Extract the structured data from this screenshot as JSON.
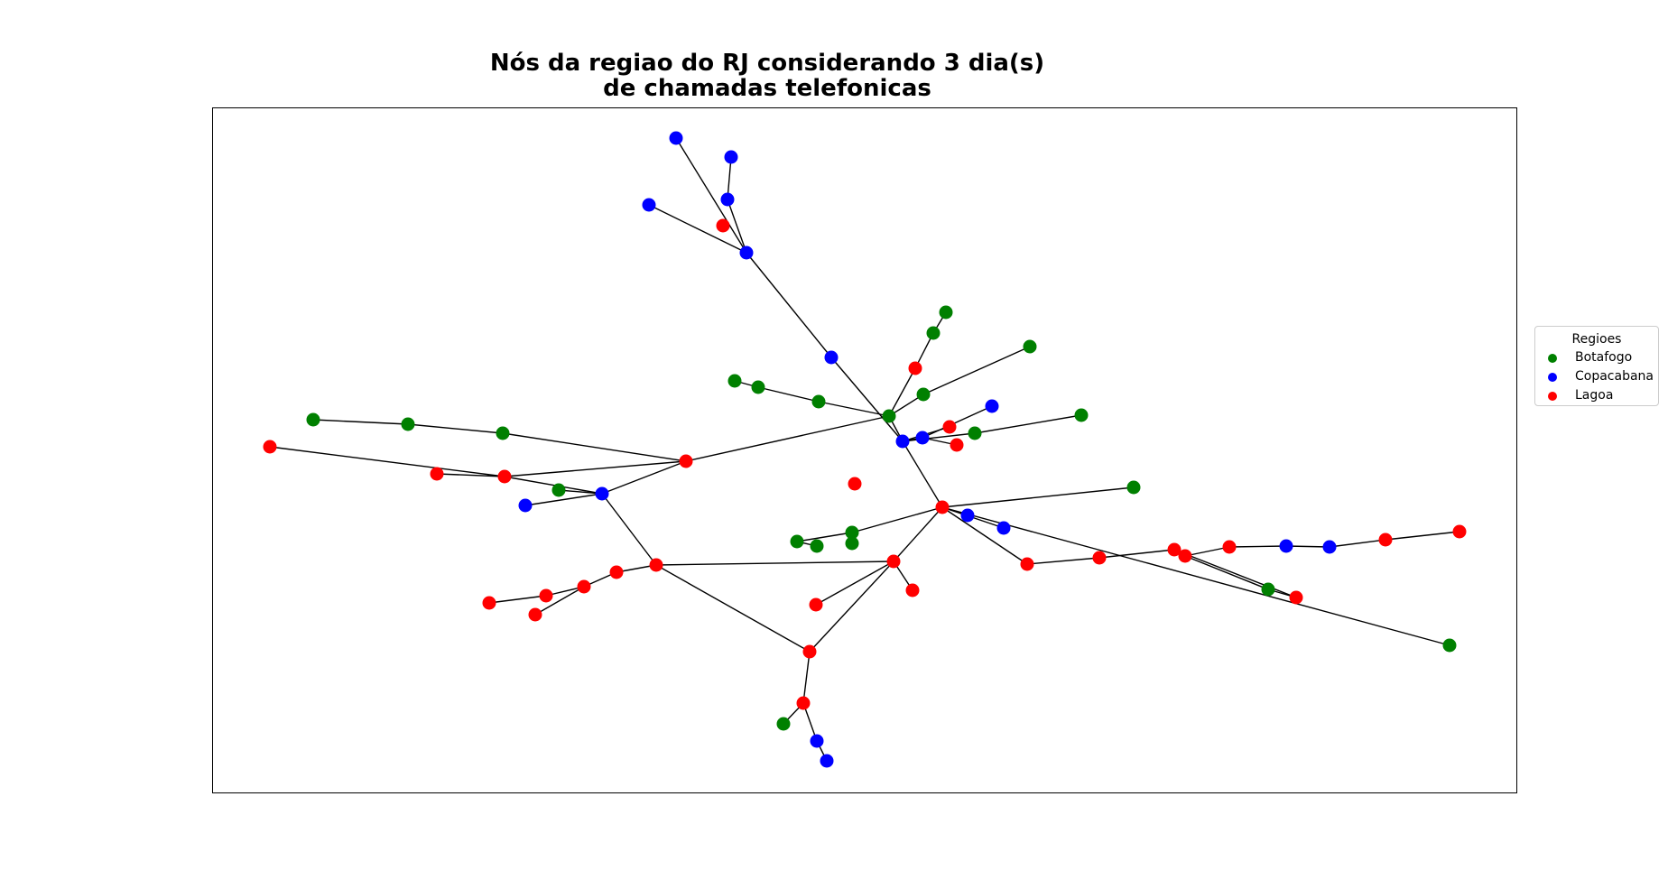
{
  "title": {
    "line1": "Nós da regiao do RJ considerando 3 dia(s)",
    "line2": "de chamadas telefonicas"
  },
  "legend": {
    "title": "Regioes",
    "items": [
      {
        "label": "Botafogo",
        "color": "#008000"
      },
      {
        "label": "Copacabana",
        "color": "#0000ff"
      },
      {
        "label": "Lagoa",
        "color": "#ff0000"
      }
    ]
  },
  "graph": {
    "edge_color": "#000000",
    "nodes": [
      {
        "id": "c1",
        "region": "Copacabana",
        "pos": [
          749,
          153
        ]
      },
      {
        "id": "c2",
        "region": "Copacabana",
        "pos": [
          810,
          174
        ]
      },
      {
        "id": "c3",
        "region": "Copacabana",
        "pos": [
          806,
          221
        ]
      },
      {
        "id": "c4",
        "region": "Copacabana",
        "pos": [
          719,
          227
        ]
      },
      {
        "id": "l1",
        "region": "Lagoa",
        "pos": [
          801,
          250
        ]
      },
      {
        "id": "c5",
        "region": "Copacabana",
        "pos": [
          827,
          280
        ]
      },
      {
        "id": "c6",
        "region": "Copacabana",
        "pos": [
          921,
          396
        ]
      },
      {
        "id": "g1",
        "region": "Botafogo",
        "pos": [
          1048,
          346
        ]
      },
      {
        "id": "g2",
        "region": "Botafogo",
        "pos": [
          1034,
          369
        ]
      },
      {
        "id": "l2",
        "region": "Lagoa",
        "pos": [
          1014,
          408
        ]
      },
      {
        "id": "g3",
        "region": "Botafogo",
        "pos": [
          1141,
          384
        ]
      },
      {
        "id": "g4",
        "region": "Botafogo",
        "pos": [
          1023,
          437
        ]
      },
      {
        "id": "g5",
        "region": "Botafogo",
        "pos": [
          985,
          461
        ]
      },
      {
        "id": "g6",
        "region": "Botafogo",
        "pos": [
          814,
          422
        ]
      },
      {
        "id": "g7",
        "region": "Botafogo",
        "pos": [
          840,
          429
        ]
      },
      {
        "id": "g8",
        "region": "Botafogo",
        "pos": [
          907,
          445
        ]
      },
      {
        "id": "c7",
        "region": "Copacabana",
        "pos": [
          1099,
          450
        ]
      },
      {
        "id": "c8",
        "region": "Copacabana",
        "pos": [
          1000,
          489
        ]
      },
      {
        "id": "c9",
        "region": "Copacabana",
        "pos": [
          1022,
          485
        ]
      },
      {
        "id": "l3",
        "region": "Lagoa",
        "pos": [
          1052,
          473
        ]
      },
      {
        "id": "l4",
        "region": "Lagoa",
        "pos": [
          1060,
          493
        ]
      },
      {
        "id": "g9",
        "region": "Botafogo",
        "pos": [
          1080,
          480
        ]
      },
      {
        "id": "g10",
        "region": "Botafogo",
        "pos": [
          1198,
          460
        ]
      },
      {
        "id": "g11",
        "region": "Botafogo",
        "pos": [
          347,
          465
        ]
      },
      {
        "id": "g12",
        "region": "Botafogo",
        "pos": [
          452,
          470
        ]
      },
      {
        "id": "g13",
        "region": "Botafogo",
        "pos": [
          557,
          480
        ]
      },
      {
        "id": "l5",
        "region": "Lagoa",
        "pos": [
          760,
          511
        ]
      },
      {
        "id": "l6",
        "region": "Lagoa",
        "pos": [
          299,
          495
        ]
      },
      {
        "id": "l7",
        "region": "Lagoa",
        "pos": [
          484,
          525
        ]
      },
      {
        "id": "l8",
        "region": "Lagoa",
        "pos": [
          559,
          528
        ]
      },
      {
        "id": "g14",
        "region": "Botafogo",
        "pos": [
          619,
          543
        ]
      },
      {
        "id": "c10",
        "region": "Copacabana",
        "pos": [
          667,
          547
        ]
      },
      {
        "id": "c11",
        "region": "Copacabana",
        "pos": [
          582,
          560
        ]
      },
      {
        "id": "l9",
        "region": "Lagoa",
        "pos": [
          947,
          536
        ]
      },
      {
        "id": "l10",
        "region": "Lagoa",
        "pos": [
          1044,
          562
        ]
      },
      {
        "id": "g15",
        "region": "Botafogo",
        "pos": [
          1256,
          540
        ]
      },
      {
        "id": "c12",
        "region": "Copacabana",
        "pos": [
          1072,
          571
        ]
      },
      {
        "id": "c13",
        "region": "Copacabana",
        "pos": [
          1112,
          585
        ]
      },
      {
        "id": "g16",
        "region": "Botafogo",
        "pos": [
          883,
          600
        ]
      },
      {
        "id": "g17",
        "region": "Botafogo",
        "pos": [
          905,
          605
        ]
      },
      {
        "id": "g18",
        "region": "Botafogo",
        "pos": [
          944,
          590
        ]
      },
      {
        "id": "g19",
        "region": "Botafogo",
        "pos": [
          944,
          602
        ]
      },
      {
        "id": "l11",
        "region": "Lagoa",
        "pos": [
          990,
          622
        ]
      },
      {
        "id": "l12",
        "region": "Lagoa",
        "pos": [
          1011,
          654
        ]
      },
      {
        "id": "l13",
        "region": "Lagoa",
        "pos": [
          727,
          626
        ]
      },
      {
        "id": "l14",
        "region": "Lagoa",
        "pos": [
          683,
          634
        ]
      },
      {
        "id": "l15",
        "region": "Lagoa",
        "pos": [
          647,
          650
        ]
      },
      {
        "id": "l16",
        "region": "Lagoa",
        "pos": [
          605,
          660
        ]
      },
      {
        "id": "l17",
        "region": "Lagoa",
        "pos": [
          542,
          668
        ]
      },
      {
        "id": "l18",
        "region": "Lagoa",
        "pos": [
          593,
          681
        ]
      },
      {
        "id": "l19",
        "region": "Lagoa",
        "pos": [
          904,
          670
        ]
      },
      {
        "id": "l20",
        "region": "Lagoa",
        "pos": [
          1138,
          625
        ]
      },
      {
        "id": "l21",
        "region": "Lagoa",
        "pos": [
          1218,
          618
        ]
      },
      {
        "id": "l22",
        "region": "Lagoa",
        "pos": [
          1301,
          609
        ]
      },
      {
        "id": "l23",
        "region": "Lagoa",
        "pos": [
          1313,
          616
        ]
      },
      {
        "id": "l24",
        "region": "Lagoa",
        "pos": [
          1362,
          606
        ]
      },
      {
        "id": "c14",
        "region": "Copacabana",
        "pos": [
          1425,
          605
        ]
      },
      {
        "id": "c15",
        "region": "Copacabana",
        "pos": [
          1473,
          606
        ]
      },
      {
        "id": "l25",
        "region": "Lagoa",
        "pos": [
          1535,
          598
        ]
      },
      {
        "id": "l26",
        "region": "Lagoa",
        "pos": [
          1617,
          589
        ]
      },
      {
        "id": "g20",
        "region": "Botafogo",
        "pos": [
          1405,
          653
        ]
      },
      {
        "id": "l27",
        "region": "Lagoa",
        "pos": [
          1436,
          662
        ]
      },
      {
        "id": "g21",
        "region": "Botafogo",
        "pos": [
          1606,
          715
        ]
      },
      {
        "id": "l28",
        "region": "Lagoa",
        "pos": [
          897,
          722
        ]
      },
      {
        "id": "l29",
        "region": "Lagoa",
        "pos": [
          890,
          779
        ]
      },
      {
        "id": "g22",
        "region": "Botafogo",
        "pos": [
          868,
          802
        ]
      },
      {
        "id": "c16",
        "region": "Copacabana",
        "pos": [
          905,
          821
        ]
      },
      {
        "id": "c17",
        "region": "Copacabana",
        "pos": [
          916,
          843
        ]
      }
    ],
    "edges": [
      [
        "c1",
        "c5"
      ],
      [
        "c2",
        "c3"
      ],
      [
        "c3",
        "c5"
      ],
      [
        "c4",
        "c5"
      ],
      [
        "c5",
        "c6"
      ],
      [
        "c6",
        "c8"
      ],
      [
        "g1",
        "g2"
      ],
      [
        "g2",
        "l2"
      ],
      [
        "l2",
        "g5"
      ],
      [
        "g3",
        "g4"
      ],
      [
        "g4",
        "g5"
      ],
      [
        "g6",
        "g7"
      ],
      [
        "g7",
        "g8"
      ],
      [
        "g8",
        "g5"
      ],
      [
        "g5",
        "c8"
      ],
      [
        "g5",
        "l5"
      ],
      [
        "c7",
        "c9"
      ],
      [
        "c8",
        "c9"
      ],
      [
        "c9",
        "l4"
      ],
      [
        "c8",
        "l3"
      ],
      [
        "c8",
        "g9"
      ],
      [
        "g9",
        "g10"
      ],
      [
        "c8",
        "l10"
      ],
      [
        "l5",
        "l8"
      ],
      [
        "l5",
        "c10"
      ],
      [
        "l6",
        "l8"
      ],
      [
        "l7",
        "l8"
      ],
      [
        "g11",
        "g12"
      ],
      [
        "g12",
        "g13"
      ],
      [
        "g13",
        "l5"
      ],
      [
        "l8",
        "c10"
      ],
      [
        "g14",
        "c10"
      ],
      [
        "c11",
        "c10"
      ],
      [
        "c10",
        "l13"
      ],
      [
        "l10",
        "g15"
      ],
      [
        "l10",
        "c12"
      ],
      [
        "l10",
        "c13"
      ],
      [
        "l10",
        "l11"
      ],
      [
        "l10",
        "l20"
      ],
      [
        "l10",
        "g21"
      ],
      [
        "g16",
        "g17"
      ],
      [
        "g16",
        "g18"
      ],
      [
        "g18",
        "g19"
      ],
      [
        "g18",
        "l10"
      ],
      [
        "l11",
        "l12"
      ],
      [
        "l11",
        "l28"
      ],
      [
        "l13",
        "l11"
      ],
      [
        "l13",
        "l14"
      ],
      [
        "l13",
        "l28"
      ],
      [
        "l14",
        "l15"
      ],
      [
        "l15",
        "l16"
      ],
      [
        "l15",
        "l18"
      ],
      [
        "l16",
        "l17"
      ],
      [
        "l11",
        "l19"
      ],
      [
        "l20",
        "l21"
      ],
      [
        "l21",
        "l22"
      ],
      [
        "l22",
        "l23"
      ],
      [
        "l23",
        "l24"
      ],
      [
        "l24",
        "c14"
      ],
      [
        "c14",
        "c15"
      ],
      [
        "c15",
        "l25"
      ],
      [
        "l25",
        "l26"
      ],
      [
        "l23",
        "g20"
      ],
      [
        "g20",
        "l27"
      ],
      [
        "l27",
        "l22"
      ],
      [
        "l28",
        "l29"
      ],
      [
        "l29",
        "g22"
      ],
      [
        "l29",
        "c16"
      ],
      [
        "c16",
        "c17"
      ]
    ],
    "isolated_small": [
      {
        "id": "l30",
        "region": "Lagoa",
        "pos": [
          947,
          536
        ]
      }
    ]
  }
}
